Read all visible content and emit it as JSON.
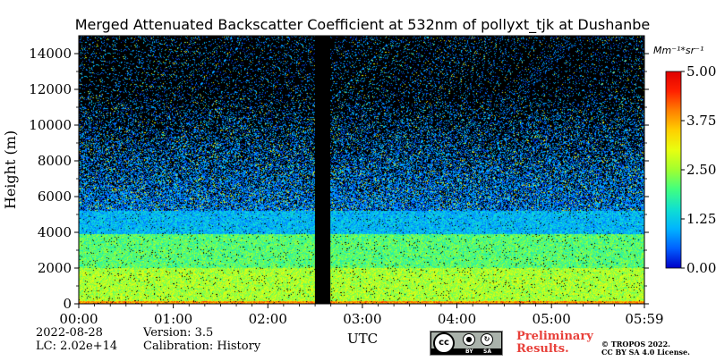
{
  "chart_data": {
    "type": "heatmap",
    "title": "Merged Attenuated Backscatter Coefficient at 532nm of pollyxt_tjk at Dushanbe",
    "xlabel": "UTC",
    "ylabel": "Height (m)",
    "x_ticks": [
      "00:00",
      "01:00",
      "02:00",
      "03:00",
      "04:00",
      "05:00",
      "05:59"
    ],
    "x_tick_hours": [
      0,
      1,
      2,
      3,
      4,
      5,
      5.983
    ],
    "xlim_hours": [
      0,
      5.983
    ],
    "y_ticks": [
      0,
      2000,
      4000,
      6000,
      8000,
      10000,
      12000,
      14000
    ],
    "ylim": [
      0,
      15000
    ],
    "colorbar": {
      "unit": "Mm⁻¹*sr⁻¹",
      "ticks": [
        "0.00",
        "1.25",
        "2.50",
        "3.75",
        "5.00"
      ],
      "range": [
        0,
        5
      ],
      "colormap": [
        "#0000c8",
        "#0060ff",
        "#00b4ff",
        "#10e0d0",
        "#40ff80",
        "#a0ff30",
        "#e8ff10",
        "#ffd000",
        "#ff8000",
        "#ff2000",
        "#e00000"
      ]
    },
    "data_gap_hours": [
      2.5,
      2.66
    ],
    "features": [
      {
        "from_height": 0,
        "to_height": 150,
        "level": "high"
      },
      {
        "from_height": 150,
        "to_height": 2000,
        "level": "moderate-high"
      },
      {
        "from_height": 2000,
        "to_height": 3900,
        "level": "moderate"
      },
      {
        "from_height": 3900,
        "to_height": 5200,
        "level": "low"
      },
      {
        "from_height": 5200,
        "to_height": 15000,
        "level": "background noise"
      }
    ]
  },
  "footer": {
    "date": "2022-08-28",
    "lc": "LC: 2.02e+14",
    "version": "Version: 3.5",
    "calibration": "Calibration: History",
    "preliminary_line1": "Preliminary",
    "preliminary_line2": "Results.",
    "copyright_line1": "© TROPOS 2022.",
    "copyright_line2": "CC BY SA 4.0 License.",
    "badge_by": "BY",
    "badge_sa": "SA"
  }
}
